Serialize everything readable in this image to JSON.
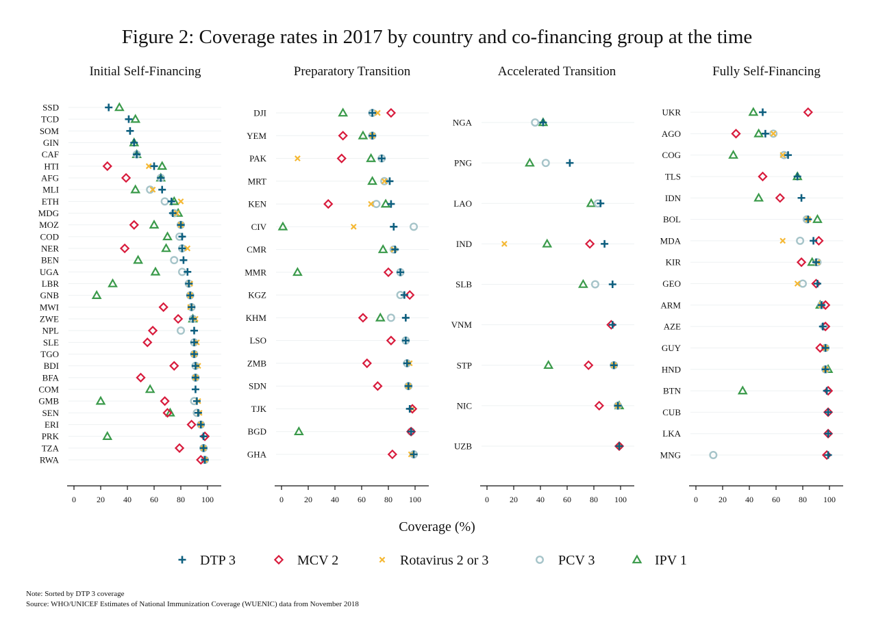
{
  "chart_data": {
    "type": "scatter",
    "title": "Figure 2: Coverage rates in 2017 by country and co-financing group at the time",
    "xlabel": "Coverage (%)",
    "xlim": [
      0,
      100
    ],
    "xticks": [
      "0",
      "20",
      "40",
      "60",
      "80",
      "100"
    ],
    "grid": true,
    "legend_position": "bottom",
    "series": [
      {
        "key": "dtp3",
        "name": "DTP 3",
        "marker": "plus",
        "color": "#0e5f7f"
      },
      {
        "key": "mcv2",
        "name": "MCV 2",
        "marker": "diamond",
        "color": "#d81b3c"
      },
      {
        "key": "rota",
        "name": "Rotavirus 2 or 3",
        "marker": "x",
        "color": "#f5b833"
      },
      {
        "key": "pcv3",
        "name": "PCV 3",
        "marker": "circle",
        "color": "#a6c4c9"
      },
      {
        "key": "ipv1",
        "name": "IPV 1",
        "marker": "triangle",
        "color": "#3a9a4a"
      }
    ],
    "panels": [
      {
        "title": "Initial Self-Financing",
        "rows": [
          {
            "country": "SSD",
            "dtp3": 26,
            "mcv2": null,
            "rota": null,
            "pcv3": null,
            "ipv1": 34
          },
          {
            "country": "TCD",
            "dtp3": 41,
            "mcv2": null,
            "rota": null,
            "pcv3": null,
            "ipv1": 46
          },
          {
            "country": "SOM",
            "dtp3": 42,
            "mcv2": null,
            "rota": null,
            "pcv3": null,
            "ipv1": null
          },
          {
            "country": "GIN",
            "dtp3": 45,
            "mcv2": null,
            "rota": null,
            "pcv3": null,
            "ipv1": 45
          },
          {
            "country": "CAF",
            "dtp3": 47,
            "mcv2": null,
            "rota": null,
            "pcv3": 47,
            "ipv1": 47
          },
          {
            "country": "HTI",
            "dtp3": 60,
            "mcv2": 25,
            "rota": 56,
            "pcv3": null,
            "ipv1": 66
          },
          {
            "country": "AFG",
            "dtp3": 65,
            "mcv2": 39,
            "rota": null,
            "pcv3": 65,
            "ipv1": 65
          },
          {
            "country": "MLI",
            "dtp3": 66,
            "mcv2": null,
            "rota": 59,
            "pcv3": 57,
            "ipv1": 46
          },
          {
            "country": "ETH",
            "dtp3": 73,
            "mcv2": null,
            "rota": 80,
            "pcv3": 68,
            "ipv1": 75
          },
          {
            "country": "MDG",
            "dtp3": 74,
            "mcv2": null,
            "rota": 77,
            "pcv3": 75,
            "ipv1": 78
          },
          {
            "country": "MOZ",
            "dtp3": 80,
            "mcv2": 45,
            "rota": 80,
            "pcv3": 80,
            "ipv1": 60
          },
          {
            "country": "COD",
            "dtp3": 81,
            "mcv2": null,
            "rota": null,
            "pcv3": 79,
            "ipv1": 70
          },
          {
            "country": "NER",
            "dtp3": 81,
            "mcv2": 38,
            "rota": 85,
            "pcv3": 81,
            "ipv1": 69
          },
          {
            "country": "BEN",
            "dtp3": 82,
            "mcv2": null,
            "rota": null,
            "pcv3": 75,
            "ipv1": 48
          },
          {
            "country": "UGA",
            "dtp3": 85,
            "mcv2": null,
            "rota": null,
            "pcv3": 81,
            "ipv1": 61
          },
          {
            "country": "LBR",
            "dtp3": 86,
            "mcv2": null,
            "rota": 87,
            "pcv3": 86,
            "ipv1": 29
          },
          {
            "country": "GNB",
            "dtp3": 87,
            "mcv2": null,
            "rota": 87,
            "pcv3": 87,
            "ipv1": 17
          },
          {
            "country": "MWI",
            "dtp3": 88,
            "mcv2": 67,
            "rota": 87,
            "pcv3": 88,
            "ipv1": null
          },
          {
            "country": "ZWE",
            "dtp3": 89,
            "mcv2": 78,
            "rota": 91,
            "pcv3": 89,
            "ipv1": 89
          },
          {
            "country": "NPL",
            "dtp3": 90,
            "mcv2": 59,
            "rota": null,
            "pcv3": 80,
            "ipv1": null
          },
          {
            "country": "SLE",
            "dtp3": 90,
            "mcv2": 55,
            "rota": 92,
            "pcv3": 90,
            "ipv1": null
          },
          {
            "country": "TGO",
            "dtp3": 90,
            "mcv2": null,
            "rota": 90,
            "pcv3": 90,
            "ipv1": null
          },
          {
            "country": "BDI",
            "dtp3": 91,
            "mcv2": 75,
            "rota": 93,
            "pcv3": 91,
            "ipv1": null
          },
          {
            "country": "BFA",
            "dtp3": 91,
            "mcv2": 50,
            "rota": 91,
            "pcv3": 91,
            "ipv1": null
          },
          {
            "country": "COM",
            "dtp3": 91,
            "mcv2": null,
            "rota": null,
            "pcv3": null,
            "ipv1": 57
          },
          {
            "country": "GMB",
            "dtp3": 92,
            "mcv2": 68,
            "rota": 93,
            "pcv3": 90,
            "ipv1": 20
          },
          {
            "country": "SEN",
            "dtp3": 93,
            "mcv2": 70,
            "rota": 94,
            "pcv3": 92,
            "ipv1": 72
          },
          {
            "country": "ERI",
            "dtp3": 95,
            "mcv2": 88,
            "rota": 95,
            "pcv3": 95,
            "ipv1": null
          },
          {
            "country": "PRK",
            "dtp3": 97,
            "mcv2": 98,
            "rota": null,
            "pcv3": null,
            "ipv1": 25
          },
          {
            "country": "TZA",
            "dtp3": 97,
            "mcv2": 79,
            "rota": 97,
            "pcv3": 97,
            "ipv1": null
          },
          {
            "country": "RWA",
            "dtp3": 98,
            "mcv2": 95,
            "rota": 98,
            "pcv3": 98,
            "ipv1": null
          }
        ]
      },
      {
        "title": "Preparatory Transition",
        "rows": [
          {
            "country": "DJI",
            "dtp3": 68,
            "mcv2": 82,
            "rota": 72,
            "pcv3": 68,
            "ipv1": 46
          },
          {
            "country": "YEM",
            "dtp3": 68,
            "mcv2": 46,
            "rota": 68,
            "pcv3": 68,
            "ipv1": 61
          },
          {
            "country": "PAK",
            "dtp3": 75,
            "mcv2": 45,
            "rota": 12,
            "pcv3": 75,
            "ipv1": 67
          },
          {
            "country": "MRT",
            "dtp3": 81,
            "mcv2": null,
            "rota": 77,
            "pcv3": 77,
            "ipv1": 68
          },
          {
            "country": "KEN",
            "dtp3": 82,
            "mcv2": 35,
            "rota": 67,
            "pcv3": 71,
            "ipv1": 78
          },
          {
            "country": "CIV",
            "dtp3": 84,
            "mcv2": null,
            "rota": 54,
            "pcv3": 99,
            "ipv1": 1
          },
          {
            "country": "CMR",
            "dtp3": 85,
            "mcv2": null,
            "rota": 84,
            "pcv3": 84,
            "ipv1": 76
          },
          {
            "country": "MMR",
            "dtp3": 89,
            "mcv2": 80,
            "rota": null,
            "pcv3": 89,
            "ipv1": 12
          },
          {
            "country": "KGZ",
            "dtp3": 92,
            "mcv2": 96,
            "rota": null,
            "pcv3": 89,
            "ipv1": null
          },
          {
            "country": "KHM",
            "dtp3": 93,
            "mcv2": 61,
            "rota": null,
            "pcv3": 82,
            "ipv1": 74
          },
          {
            "country": "LSO",
            "dtp3": 93,
            "mcv2": 82,
            "rota": null,
            "pcv3": 93,
            "ipv1": null
          },
          {
            "country": "ZMB",
            "dtp3": 94,
            "mcv2": 64,
            "rota": 96,
            "pcv3": 94,
            "ipv1": null
          },
          {
            "country": "SDN",
            "dtp3": 95,
            "mcv2": 72,
            "rota": 95,
            "pcv3": 95,
            "ipv1": null
          },
          {
            "country": "TJK",
            "dtp3": 96,
            "mcv2": 98,
            "rota": 98,
            "pcv3": null,
            "ipv1": null
          },
          {
            "country": "BGD",
            "dtp3": 97,
            "mcv2": 97,
            "rota": null,
            "pcv3": 97,
            "ipv1": 13
          },
          {
            "country": "GHA",
            "dtp3": 99,
            "mcv2": 83,
            "rota": 97,
            "pcv3": 99,
            "ipv1": null
          }
        ]
      },
      {
        "title": "Accelerated Transition",
        "rows": [
          {
            "country": "NGA",
            "dtp3": 42,
            "mcv2": null,
            "rota": null,
            "pcv3": 36,
            "ipv1": 42
          },
          {
            "country": "PNG",
            "dtp3": 62,
            "mcv2": null,
            "rota": null,
            "pcv3": 44,
            "ipv1": 32
          },
          {
            "country": "LAO",
            "dtp3": 85,
            "mcv2": null,
            "rota": null,
            "pcv3": 83,
            "ipv1": 78
          },
          {
            "country": "IND",
            "dtp3": 88,
            "mcv2": 77,
            "rota": 13,
            "pcv3": null,
            "ipv1": 45
          },
          {
            "country": "SLB",
            "dtp3": 94,
            "mcv2": null,
            "rota": null,
            "pcv3": 81,
            "ipv1": 72
          },
          {
            "country": "VNM",
            "dtp3": 94,
            "mcv2": 93,
            "rota": null,
            "pcv3": null,
            "ipv1": null
          },
          {
            "country": "STP",
            "dtp3": 95,
            "mcv2": 76,
            "rota": 95,
            "pcv3": 95,
            "ipv1": 46
          },
          {
            "country": "NIC",
            "dtp3": 98,
            "mcv2": 84,
            "rota": 98,
            "pcv3": 98,
            "ipv1": 99
          },
          {
            "country": "UZB",
            "dtp3": 99,
            "mcv2": 99,
            "rota": 99,
            "pcv3": null,
            "ipv1": null
          }
        ]
      },
      {
        "title": "Fully Self-Financing",
        "rows": [
          {
            "country": "UKR",
            "dtp3": 50,
            "mcv2": 84,
            "rota": null,
            "pcv3": null,
            "ipv1": 43
          },
          {
            "country": "AGO",
            "dtp3": 52,
            "mcv2": 30,
            "rota": 58,
            "pcv3": 58,
            "ipv1": 47
          },
          {
            "country": "COG",
            "dtp3": 69,
            "mcv2": null,
            "rota": 65,
            "pcv3": 66,
            "ipv1": 28
          },
          {
            "country": "TLS",
            "dtp3": 76,
            "mcv2": 50,
            "rota": null,
            "pcv3": null,
            "ipv1": 76
          },
          {
            "country": "IDN",
            "dtp3": 79,
            "mcv2": 63,
            "rota": null,
            "pcv3": null,
            "ipv1": 47
          },
          {
            "country": "BOL",
            "dtp3": 84,
            "mcv2": null,
            "rota": 84,
            "pcv3": 83,
            "ipv1": 91
          },
          {
            "country": "MDA",
            "dtp3": 88,
            "mcv2": 92,
            "rota": 65,
            "pcv3": 78,
            "ipv1": null
          },
          {
            "country": "KIR",
            "dtp3": 90,
            "mcv2": 79,
            "rota": 91,
            "pcv3": 91,
            "ipv1": 87
          },
          {
            "country": "GEO",
            "dtp3": 91,
            "mcv2": 90,
            "rota": 76,
            "pcv3": 80,
            "ipv1": null
          },
          {
            "country": "ARM",
            "dtp3": 94,
            "mcv2": 97,
            "rota": 94,
            "pcv3": 94,
            "ipv1": 93
          },
          {
            "country": "AZE",
            "dtp3": 95,
            "mcv2": 97,
            "rota": null,
            "pcv3": 96,
            "ipv1": null
          },
          {
            "country": "GUY",
            "dtp3": 97,
            "mcv2": 93,
            "rota": 97,
            "pcv3": 97,
            "ipv1": null
          },
          {
            "country": "HND",
            "dtp3": 97,
            "mcv2": null,
            "rota": 97,
            "pcv3": 97,
            "ipv1": 99
          },
          {
            "country": "BTN",
            "dtp3": 98,
            "mcv2": 99,
            "rota": null,
            "pcv3": null,
            "ipv1": 35
          },
          {
            "country": "CUB",
            "dtp3": 99,
            "mcv2": 99,
            "rota": null,
            "pcv3": null,
            "ipv1": null
          },
          {
            "country": "LKA",
            "dtp3": 99,
            "mcv2": 99,
            "rota": null,
            "pcv3": null,
            "ipv1": null
          },
          {
            "country": "MNG",
            "dtp3": 99,
            "mcv2": 98,
            "rota": null,
            "pcv3": 13,
            "ipv1": null
          }
        ]
      }
    ]
  },
  "notes": {
    "line1": "Note: Sorted by DTP 3 coverage",
    "line2": "Source: WHO/UNICEF Estimates of National Immunization Coverage (WUENIC) data from November 2018"
  }
}
